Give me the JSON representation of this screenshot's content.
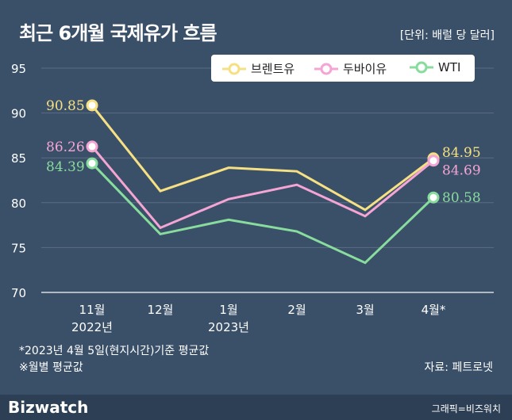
{
  "title": "최근 6개월 국제유가 흐름",
  "unit": "[단위: 배럴 당 달러]",
  "note1": "*2023년 4월 5일(현지시간)기준 평균값",
  "note2": "※월별 평균값",
  "source": "자료: 페트로넷",
  "logo": "Bizwatch",
  "credit": "그래픽=비즈워치",
  "colors": {
    "brent": "#f5e083",
    "dubai": "#f4a5d3",
    "wti": "#88dc9d",
    "background": "#3a4f68"
  },
  "chart_data": {
    "type": "line",
    "categories": [
      "11월\n2022년",
      "12월",
      "1월\n2023년",
      "2월",
      "3월",
      "4월*"
    ],
    "ylim": [
      70,
      95
    ],
    "yticks": [
      70,
      75,
      80,
      85,
      90,
      95
    ],
    "grid": true,
    "legend": "top-right",
    "series": [
      {
        "name": "브렌트유",
        "color": "#f5e083",
        "values": [
          90.85,
          81.3,
          83.9,
          83.5,
          79.2,
          84.95
        ],
        "labels": [
          "90.85",
          "",
          "",
          "",
          "",
          "84.95"
        ]
      },
      {
        "name": "두바이유",
        "color": "#f4a5d3",
        "values": [
          86.26,
          77.2,
          80.4,
          82.0,
          78.5,
          84.69
        ],
        "labels": [
          "86.26",
          "",
          "",
          "",
          "",
          "84.69"
        ]
      },
      {
        "name": "WTI",
        "color": "#88dc9d",
        "values": [
          84.39,
          76.5,
          78.1,
          76.8,
          73.3,
          80.58
        ],
        "labels": [
          "84.39",
          "",
          "",
          "",
          "",
          "80.58"
        ]
      }
    ]
  }
}
